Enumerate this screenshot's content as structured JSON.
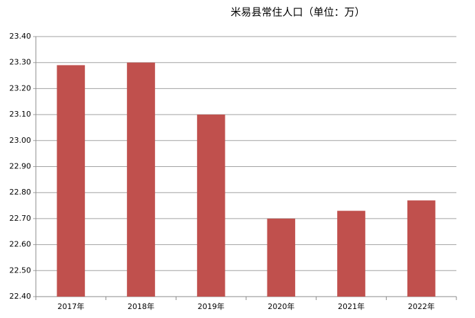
{
  "chart_data": {
    "type": "bar",
    "title": "米易县常住人口（单位：万）",
    "categories": [
      "2017年",
      "2018年",
      "2019年",
      "2020年",
      "2021年",
      "2022年"
    ],
    "values": [
      23.29,
      23.3,
      23.1,
      22.7,
      22.73,
      22.77
    ],
    "color": "#c0504d",
    "ylim": [
      22.4,
      23.4
    ],
    "yticks": [
      {
        "value": 22.4,
        "label": "22.40"
      },
      {
        "value": 22.5,
        "label": "22.50"
      },
      {
        "value": 22.6,
        "label": "22.60"
      },
      {
        "value": 22.7,
        "label": "22.70"
      },
      {
        "value": 22.8,
        "label": "22.80"
      },
      {
        "value": 22.9,
        "label": "22.90"
      },
      {
        "value": 23.0,
        "label": "23.00"
      },
      {
        "value": 23.1,
        "label": "23.10"
      },
      {
        "value": 23.2,
        "label": "23.20"
      },
      {
        "value": 23.3,
        "label": "23.30"
      },
      {
        "value": 23.4,
        "label": "23.40"
      }
    ],
    "grid": true
  }
}
